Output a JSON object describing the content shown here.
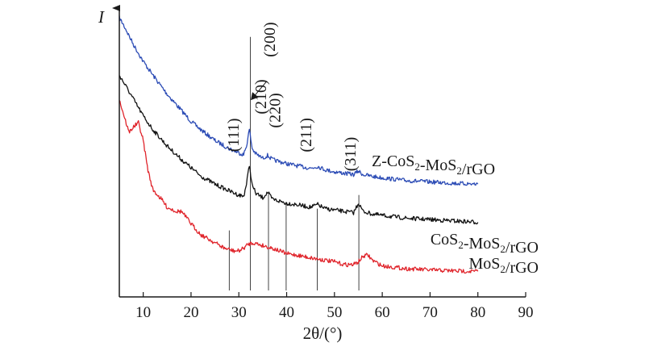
{
  "chart_data": {
    "type": "line",
    "title": "",
    "xlabel": "2θ/(°)",
    "ylabel": "I",
    "xlim": [
      5,
      90
    ],
    "xticks": [
      10,
      20,
      30,
      40,
      50,
      60,
      70,
      80,
      90
    ],
    "grid": false,
    "legend": "none",
    "series": [
      {
        "name": "Z-CoS2-MoS2/rGO",
        "label_text": {
          "prefix": "Z-CoS",
          "sub1": "2",
          "mid": "-MoS",
          "sub2": "2",
          "suffix": "/rGO"
        },
        "color": "#2b4bb5",
        "x": [
          5,
          6,
          8,
          10,
          12,
          15,
          18,
          20,
          22,
          25,
          28,
          30,
          31,
          31.6,
          32.2,
          32.8,
          33.6,
          35,
          36,
          37,
          39,
          40,
          42,
          45,
          46.5,
          48,
          50,
          54,
          55,
          56,
          58,
          60,
          65,
          70,
          75,
          80
        ],
        "y": [
          100,
          97,
          90,
          84,
          79,
          72,
          66,
          62,
          59,
          55,
          52,
          50.5,
          49.8,
          53,
          59,
          52,
          50,
          48.5,
          49.5,
          48,
          47,
          46.5,
          45.8,
          44.8,
          45.5,
          44.3,
          43.5,
          42.5,
          43.8,
          42.5,
          41.8,
          41.3,
          40.3,
          39.8,
          39.3,
          39
        ]
      },
      {
        "name": "CoS2-MoS2/rGO",
        "label_text": {
          "prefix": "CoS",
          "sub1": "2",
          "mid": "-MoS",
          "sub2": "2",
          "suffix": "/rGO"
        },
        "color": "#111111",
        "x": [
          5,
          6,
          8,
          10,
          12,
          15,
          18,
          20,
          22,
          25,
          28,
          30,
          31,
          31.6,
          32.2,
          32.8,
          33.6,
          35,
          36,
          37,
          39,
          40,
          42,
          45,
          46.5,
          48,
          50,
          54,
          55,
          56,
          58,
          60,
          65,
          70,
          75,
          80
        ],
        "y": [
          79,
          76,
          70,
          64,
          59,
          53,
          48,
          45,
          42,
          39,
          36.5,
          35,
          34.5,
          39,
          46,
          38.5,
          35.5,
          34,
          36,
          33.5,
          32.5,
          32,
          31.5,
          30.5,
          31.5,
          30,
          29.5,
          28.5,
          32,
          29,
          28,
          27.5,
          26.5,
          26,
          25.5,
          25
        ]
      },
      {
        "name": "MoS2/rGO",
        "label_text": {
          "prefix": "MoS",
          "sub1": "2",
          "mid": "/rGO",
          "sub2": "",
          "suffix": ""
        },
        "color": "#e0242b",
        "x": [
          5,
          6,
          7,
          8,
          9,
          10,
          11,
          12,
          14,
          15,
          17,
          18,
          20,
          22,
          25,
          27,
          29,
          30,
          31,
          32,
          33,
          35,
          37,
          40,
          42,
          45,
          50,
          52,
          54,
          55,
          56,
          57,
          58,
          60,
          65,
          70,
          75,
          80
        ],
        "y": [
          70,
          64,
          58,
          60,
          61.5,
          55,
          44,
          37,
          33,
          30.5,
          29,
          29,
          24.5,
          20.5,
          17.5,
          15.5,
          14.5,
          14.5,
          15.5,
          17,
          17.5,
          16.5,
          15.5,
          13.5,
          13,
          12,
          10.5,
          9.5,
          9.5,
          10.5,
          12.5,
          13,
          11,
          9,
          8,
          7.5,
          7.2,
          7
        ]
      }
    ],
    "reference_lines": [
      {
        "x": 28.0,
        "top": 22
      },
      {
        "x": 32.4,
        "top": 93
      },
      {
        "x": 36.2,
        "top": 36
      },
      {
        "x": 39.9,
        "top": 32
      },
      {
        "x": 46.4,
        "top": 30
      },
      {
        "x": 55.1,
        "top": 35
      }
    ],
    "annotations": [
      {
        "text": "(111)",
        "x": 29.2,
        "y": 57,
        "rotate": -90
      },
      {
        "text": "(200)",
        "x": 36.8,
        "y": 92,
        "rotate": -90,
        "arrow_to": [
          32.6,
          70
        ]
      },
      {
        "text": "(210)",
        "x": 34.9,
        "y": 71,
        "rotate": -90
      },
      {
        "text": "(220)",
        "x": 37.9,
        "y": 66,
        "rotate": -90
      },
      {
        "text": "(211)",
        "x": 44.4,
        "y": 57,
        "rotate": -90
      },
      {
        "text": "(311)",
        "x": 53.6,
        "y": 50,
        "rotate": -90
      }
    ]
  }
}
